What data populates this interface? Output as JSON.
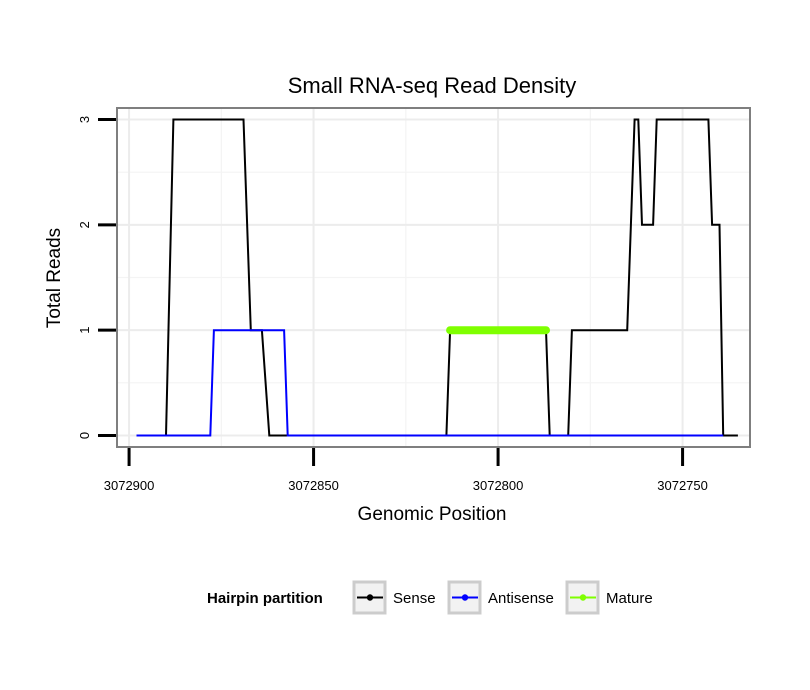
{
  "chart_data": {
    "type": "line",
    "title": "Small RNA-seq Read Density",
    "xlabel": "Genomic Position",
    "ylabel": "Total Reads",
    "xlim": [
      3072903,
      3072732
    ],
    "ylim": [
      -0.1,
      3.1
    ],
    "x_reversed": true,
    "x_ticks": [
      3072900,
      3072850,
      3072800,
      3072750
    ],
    "x_tick_labels": [
      "3072900",
      "3072850",
      "3072800",
      "3072750"
    ],
    "y_ticks": [
      0,
      1,
      2,
      3
    ],
    "y_tick_labels": [
      "0",
      "1",
      "2",
      "3"
    ],
    "grid": true,
    "legend": {
      "title": "Hairpin partition",
      "placement": "bottom",
      "entries": [
        "Sense",
        "Antisense",
        "Mature"
      ]
    },
    "series": [
      {
        "name": "Sense",
        "color": "#000000",
        "points": [
          [
            3072898,
            0
          ],
          [
            3072890,
            0
          ],
          [
            3072888,
            3
          ],
          [
            3072869,
            3
          ],
          [
            3072867,
            1
          ],
          [
            3072864,
            1
          ],
          [
            3072862,
            0
          ],
          [
            3072814,
            0
          ],
          [
            3072813,
            1
          ],
          [
            3072787,
            1
          ],
          [
            3072786,
            0
          ],
          [
            3072781,
            0
          ],
          [
            3072780,
            1
          ],
          [
            3072765,
            1
          ],
          [
            3072763,
            3
          ],
          [
            3072762,
            3
          ],
          [
            3072761,
            2
          ],
          [
            3072758,
            2
          ],
          [
            3072757,
            3
          ],
          [
            3072743,
            3
          ],
          [
            3072742,
            2
          ],
          [
            3072740,
            2
          ],
          [
            3072739,
            0
          ],
          [
            3072735,
            0
          ]
        ]
      },
      {
        "name": "Antisense",
        "color": "#0000ff",
        "points": [
          [
            3072898,
            0
          ],
          [
            3072878,
            0
          ],
          [
            3072877,
            1
          ],
          [
            3072858,
            1
          ],
          [
            3072857,
            0
          ],
          [
            3072739,
            0
          ]
        ]
      },
      {
        "name": "Mature",
        "color": "#7fff00",
        "points": [
          [
            3072813,
            1
          ],
          [
            3072787,
            1
          ]
        ]
      }
    ]
  }
}
